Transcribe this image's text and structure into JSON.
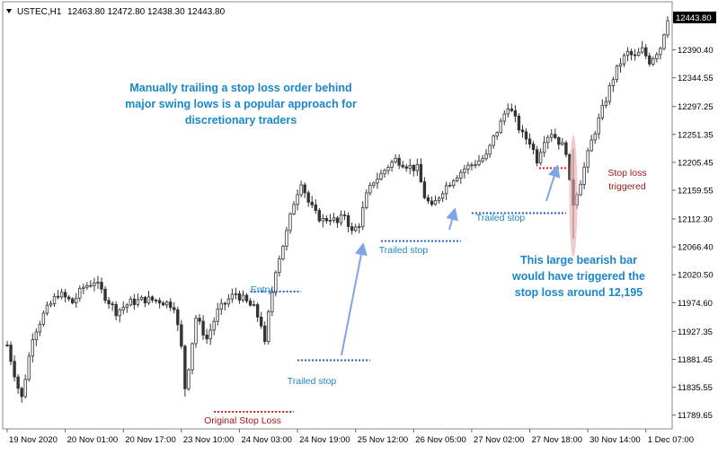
{
  "header": {
    "symbol": "USTEC,H1",
    "ohlc": "12463.80 12472.80 12438.30 12443.80",
    "menu_arrow": "dropdown-triangle-icon"
  },
  "colors": {
    "candle_stroke": "#333333",
    "candle_fill_up": "#ffffff",
    "candle_fill_down": "#333333",
    "annotation_blue": "#1a87c9",
    "annotation_red": "#a01818",
    "blue_dots": "#1f5fcf",
    "red_dots": "#cc1f1f",
    "arrow": "#7ea6e6",
    "highlight": "#e7a9a9",
    "price_tag_bg": "#000000"
  },
  "chart_data": {
    "type": "candlestick",
    "title": "",
    "xlabel": "",
    "ylabel": "",
    "ylim": [
      11770,
      12468
    ],
    "grid": false,
    "current_price": "12443.80",
    "y_ticks": [
      "12390.40",
      "12344.55",
      "12297.25",
      "12251.35",
      "12205.45",
      "12159.55",
      "12112.30",
      "12066.40",
      "12020.50",
      "11974.60",
      "11927.35",
      "11881.45",
      "11835.55",
      "11789.65"
    ],
    "y_tick_values": [
      12390.4,
      12344.55,
      12297.25,
      12251.35,
      12205.45,
      12159.55,
      12112.3,
      12066.4,
      12020.5,
      11974.6,
      11927.35,
      11881.45,
      11835.55,
      11789.65
    ],
    "x_ticks": [
      "19 Nov 2020",
      "20 Nov 01:00",
      "20 Nov 17:00",
      "23 Nov 10:00",
      "24 Nov 03:00",
      "24 Nov 19:00",
      "25 Nov 12:00",
      "26 Nov 05:00",
      "27 Nov 02:00",
      "27 Nov 18:00",
      "30 Nov 14:00",
      "1 Dec 07:00"
    ],
    "x_tick_index": [
      0,
      16,
      32,
      48,
      64,
      80,
      96,
      112,
      128,
      144,
      160,
      176
    ],
    "candle_count": 183,
    "price_path": [
      [
        0,
        11905
      ],
      [
        3,
        11835
      ],
      [
        4,
        11818
      ],
      [
        7,
        11920
      ],
      [
        10,
        11955
      ],
      [
        14,
        11990
      ],
      [
        18,
        11975
      ],
      [
        21,
        12000
      ],
      [
        24,
        12010
      ],
      [
        27,
        11985
      ],
      [
        30,
        11960
      ],
      [
        34,
        11975
      ],
      [
        38,
        11980
      ],
      [
        42,
        11978
      ],
      [
        46,
        11970
      ],
      [
        48,
        11900
      ],
      [
        49,
        11835
      ],
      [
        50,
        11870
      ],
      [
        52,
        11950
      ],
      [
        55,
        11915
      ],
      [
        58,
        11960
      ],
      [
        61,
        11980
      ],
      [
        63,
        11990
      ],
      [
        66,
        11975
      ],
      [
        68,
        11965
      ],
      [
        70,
        11940
      ],
      [
        71,
        11905
      ],
      [
        72,
        11955
      ],
      [
        74,
        12030
      ],
      [
        77,
        12090
      ],
      [
        79,
        12140
      ],
      [
        81,
        12175
      ],
      [
        83,
        12140
      ],
      [
        85,
        12120
      ],
      [
        87,
        12110
      ],
      [
        89,
        12115
      ],
      [
        91,
        12105
      ],
      [
        93,
        12120
      ],
      [
        95,
        12090
      ],
      [
        97,
        12105
      ],
      [
        99,
        12150
      ],
      [
        101,
        12175
      ],
      [
        103,
        12185
      ],
      [
        105,
        12200
      ],
      [
        107,
        12210
      ],
      [
        109,
        12205
      ],
      [
        111,
        12198
      ],
      [
        113,
        12195
      ],
      [
        115,
        12150
      ],
      [
        117,
        12130
      ],
      [
        120,
        12160
      ],
      [
        123,
        12180
      ],
      [
        126,
        12195
      ],
      [
        129,
        12205
      ],
      [
        132,
        12215
      ],
      [
        134,
        12245
      ],
      [
        136,
        12270
      ],
      [
        138,
        12300
      ],
      [
        140,
        12275
      ],
      [
        142,
        12250
      ],
      [
        144,
        12240
      ],
      [
        146,
        12210
      ],
      [
        148,
        12245
      ],
      [
        150,
        12255
      ],
      [
        152,
        12240
      ],
      [
        154,
        12225
      ],
      [
        155,
        12170
      ],
      [
        156,
        12140
      ],
      [
        158,
        12175
      ],
      [
        161,
        12240
      ],
      [
        163,
        12275
      ],
      [
        165,
        12310
      ],
      [
        167,
        12345
      ],
      [
        169,
        12370
      ],
      [
        171,
        12385
      ],
      [
        173,
        12378
      ],
      [
        175,
        12390
      ],
      [
        177,
        12372
      ],
      [
        180,
        12395
      ],
      [
        182,
        12444
      ]
    ],
    "levels": [
      {
        "label": "Entry",
        "price": 11993
      },
      {
        "label": "Original Stop Loss",
        "price": 11795
      },
      {
        "label": "Trailed stop",
        "price": 11880
      },
      {
        "label": "Trailed stop",
        "price": 12076
      },
      {
        "label": "Trailed stop",
        "price": 12122
      },
      {
        "price": 12196
      }
    ],
    "annotations": {
      "main_note": [
        "Manually trailing a stop loss order behind",
        "major swing lows is a popular approach for",
        "discretionary traders"
      ],
      "stop_triggered": [
        "Stop loss",
        "triggered"
      ],
      "bearish_note": [
        "This large bearish bar",
        "would have triggered the",
        "stop loss around 12,195"
      ],
      "entry_label": "Entry",
      "original_stop_label": "Original Stop Loss",
      "trailed_labels": [
        "Trailed stop",
        "Trailed stop",
        "Trailed stop"
      ]
    }
  }
}
